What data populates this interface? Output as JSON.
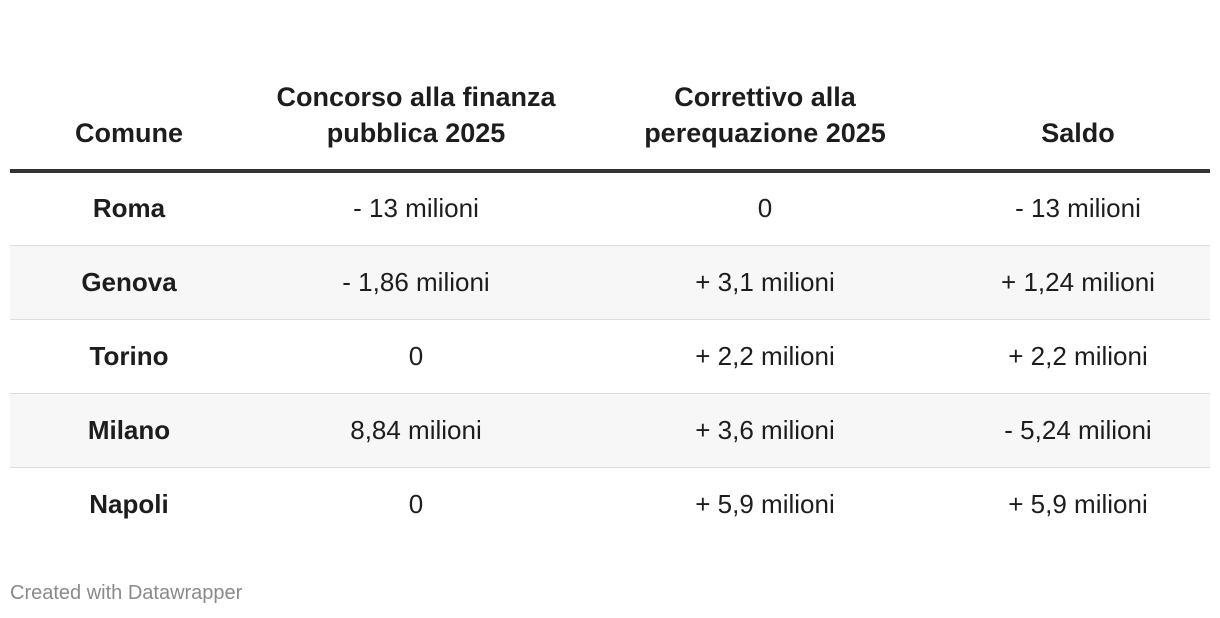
{
  "chart_data": {
    "type": "table",
    "columns": [
      "Comune",
      "Concorso alla finanza pubblica 2025",
      "Correttivo alla perequazione 2025",
      "Saldo"
    ],
    "rows": [
      [
        "Roma",
        "- 13 milioni",
        "0",
        "- 13 milioni"
      ],
      [
        "Genova",
        "- 1,86 milioni",
        "+ 3,1 milioni",
        "+ 1,24 milioni"
      ],
      [
        "Torino",
        "0",
        "+ 2,2 milioni",
        "+ 2,2 milioni"
      ],
      [
        "Milano",
        "8,84 milioni",
        "+ 3,6 milioni",
        "- 5,24 milioni"
      ],
      [
        "Napoli",
        "0",
        "+ 5,9 milioni",
        "+ 5,9 milioni"
      ]
    ]
  },
  "footer": {
    "credit": "Created with Datawrapper"
  },
  "colors": {
    "header_rule": "#333333",
    "row_divider": "#dddddd",
    "alt_row_bg": "#f7f7f7",
    "text": "#1d1d1d",
    "footer_text": "#8a8a8a"
  }
}
